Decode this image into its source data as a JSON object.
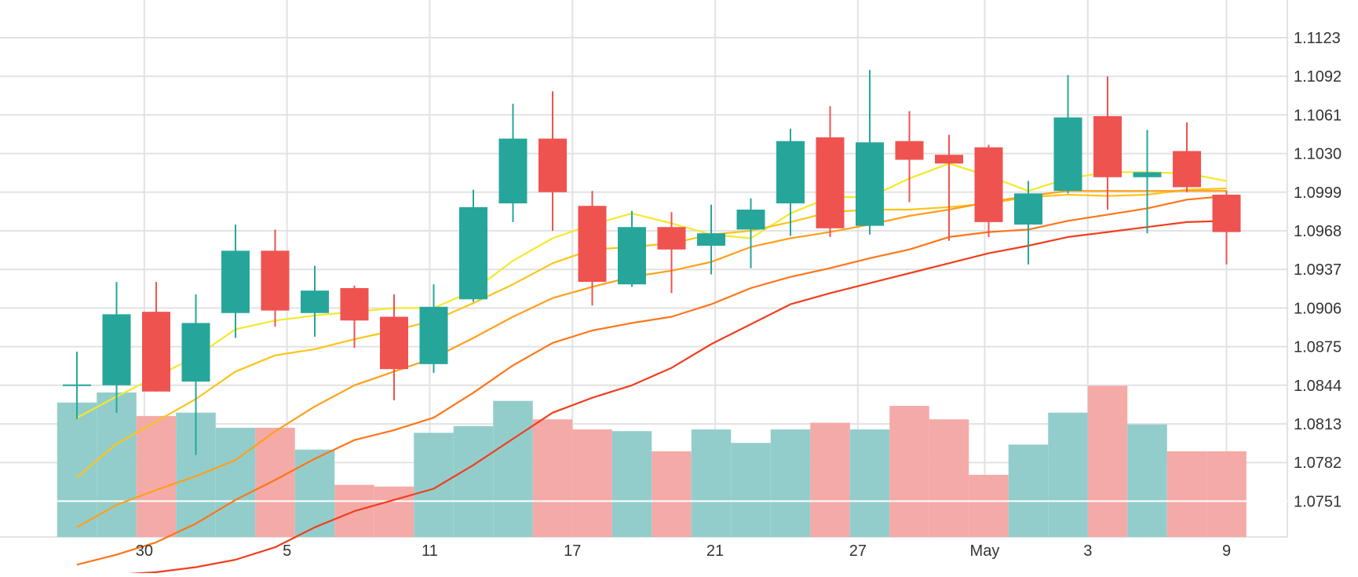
{
  "chart_data": {
    "type": "candlestick",
    "y_ticks": [
      "1.1123",
      "1.1092",
      "1.1061",
      "1.1030",
      "1.0999",
      "1.0968",
      "1.0937",
      "1.0906",
      "1.0875",
      "1.0844",
      "1.0813",
      "1.0782",
      "1.0751"
    ],
    "x_ticks": [
      "30",
      "5",
      "11",
      "17",
      "21",
      "27",
      "May",
      "3",
      "9"
    ],
    "ylim": [
      1.072,
      1.1138
    ],
    "grid": true,
    "candles": [
      {
        "o": 1.0844,
        "h": 1.0871,
        "l": 1.0817,
        "c": 1.0844
      },
      {
        "o": 1.0844,
        "h": 1.0927,
        "l": 1.0822,
        "c": 1.0901
      },
      {
        "o": 1.0903,
        "h": 1.0927,
        "l": 1.0839,
        "c": 1.0839
      },
      {
        "o": 1.0847,
        "h": 1.0917,
        "l": 1.0788,
        "c": 1.0894
      },
      {
        "o": 1.0902,
        "h": 1.0973,
        "l": 1.0882,
        "c": 1.0952
      },
      {
        "o": 1.0952,
        "h": 1.0969,
        "l": 1.0891,
        "c": 1.0904
      },
      {
        "o": 1.0902,
        "h": 1.094,
        "l": 1.0883,
        "c": 1.092
      },
      {
        "o": 1.0922,
        "h": 1.0924,
        "l": 1.0874,
        "c": 1.0896
      },
      {
        "o": 1.0899,
        "h": 1.0917,
        "l": 1.0832,
        "c": 1.0857
      },
      {
        "o": 1.0861,
        "h": 1.0925,
        "l": 1.0854,
        "c": 1.0907
      },
      {
        "o": 1.0913,
        "h": 1.1001,
        "l": 1.0911,
        "c": 1.0987
      },
      {
        "o": 1.099,
        "h": 1.107,
        "l": 1.0975,
        "c": 1.1042
      },
      {
        "o": 1.1042,
        "h": 1.108,
        "l": 1.0968,
        "c": 1.0999
      },
      {
        "o": 1.0988,
        "h": 1.1,
        "l": 1.0908,
        "c": 1.0927
      },
      {
        "o": 1.0925,
        "h": 1.0984,
        "l": 1.0923,
        "c": 1.0971
      },
      {
        "o": 1.0971,
        "h": 1.0983,
        "l": 1.0918,
        "c": 1.0953
      },
      {
        "o": 1.0956,
        "h": 1.0989,
        "l": 1.0933,
        "c": 1.0966
      },
      {
        "o": 1.0969,
        "h": 1.0994,
        "l": 1.0938,
        "c": 1.0985
      },
      {
        "o": 1.099,
        "h": 1.105,
        "l": 1.0964,
        "c": 1.104
      },
      {
        "o": 1.1043,
        "h": 1.1068,
        "l": 1.0963,
        "c": 1.097
      },
      {
        "o": 1.0972,
        "h": 1.1097,
        "l": 1.0965,
        "c": 1.1039
      },
      {
        "o": 1.104,
        "h": 1.1064,
        "l": 1.0991,
        "c": 1.1025
      },
      {
        "o": 1.1029,
        "h": 1.1045,
        "l": 1.096,
        "c": 1.1022
      },
      {
        "o": 1.1035,
        "h": 1.1037,
        "l": 1.0963,
        "c": 1.0975
      },
      {
        "o": 1.0973,
        "h": 1.1008,
        "l": 1.0941,
        "c": 1.0998
      },
      {
        "o": 1.1,
        "h": 1.1093,
        "l": 1.0998,
        "c": 1.1059
      },
      {
        "o": 1.106,
        "h": 1.1092,
        "l": 1.0985,
        "c": 1.1011
      },
      {
        "o": 1.1011,
        "h": 1.1049,
        "l": 1.0966,
        "c": 1.1015
      },
      {
        "o": 1.1032,
        "h": 1.1055,
        "l": 1.0999,
        "c": 1.1003
      },
      {
        "o": 1.0997,
        "h": 1.1,
        "l": 1.0941,
        "c": 1.0967
      }
    ],
    "volume_scale": [
      0,
      100
    ],
    "volumes": [
      80,
      86,
      72,
      74,
      65,
      65,
      52,
      31,
      30,
      62,
      66,
      81,
      70,
      64,
      63,
      51,
      64,
      56,
      64,
      68,
      64,
      78,
      70,
      37,
      55,
      74,
      90,
      67,
      51,
      51
    ],
    "moving_averages": [
      {
        "color": "#f5e82c",
        "values": [
          1.0818,
          1.0835,
          1.0851,
          1.0867,
          1.0889,
          1.0896,
          1.09,
          1.0903,
          1.0906,
          1.0906,
          1.092,
          1.0944,
          1.0962,
          1.0973,
          1.0982,
          1.0974,
          1.0965,
          1.0962,
          1.0982,
          1.0995,
          1.0995,
          1.101,
          1.1022,
          1.1012,
          1.1,
          1.101,
          1.1015,
          1.1015,
          1.1014,
          1.1008
        ]
      },
      {
        "color": "#fcc419",
        "values": [
          1.077,
          1.0797,
          1.0815,
          1.0833,
          1.0855,
          1.0868,
          1.0873,
          1.0881,
          1.0888,
          1.0896,
          1.091,
          1.0925,
          1.0942,
          1.0953,
          1.0955,
          1.0958,
          1.0965,
          1.0968,
          1.0975,
          1.0983,
          1.0985,
          1.0985,
          1.0987,
          1.099,
          1.0995,
          1.0997,
          1.0996,
          1.0997,
          1.1001,
          1.1002
        ]
      },
      {
        "color": "#ff9f1c",
        "values": [
          1.073,
          1.0748,
          1.076,
          1.0771,
          1.0784,
          1.0807,
          1.0827,
          1.0844,
          1.0855,
          1.0866,
          1.0882,
          1.0899,
          1.0914,
          1.0923,
          1.0931,
          1.0936,
          1.0943,
          1.0955,
          1.0962,
          1.0967,
          1.0973,
          1.098,
          1.0985,
          1.0991,
          1.0996,
          1.1,
          1.1,
          1.1,
          1.1,
          1.1
        ]
      },
      {
        "color": "#ff7518",
        "values": [
          1.07,
          1.0708,
          1.0718,
          1.0733,
          1.0752,
          1.0768,
          1.0785,
          1.08,
          1.0808,
          1.0818,
          1.0838,
          1.086,
          1.0878,
          1.0888,
          1.0894,
          1.0899,
          1.0909,
          1.0922,
          1.0931,
          1.0938,
          1.0946,
          1.0953,
          1.0963,
          1.0967,
          1.0969,
          1.0976,
          1.0981,
          1.0986,
          1.0993,
          1.0996
        ]
      },
      {
        "color": "#f03e1e",
        "values": [
          1.069,
          1.0692,
          1.0694,
          1.0698,
          1.0704,
          1.0714,
          1.073,
          1.0743,
          1.0752,
          1.0761,
          1.078,
          1.0801,
          1.0822,
          1.0834,
          1.0844,
          1.0858,
          1.0877,
          1.0893,
          1.0909,
          1.0918,
          1.0926,
          1.0934,
          1.0942,
          1.095,
          1.0956,
          1.0963,
          1.0967,
          1.0971,
          1.0975,
          1.0976
        ]
      }
    ],
    "colors": {
      "up": "#26a69a",
      "down": "#ef5350",
      "volume_up": "#92cdcb",
      "volume_down": "#f4aaa7",
      "grid": "#e2e2e2",
      "volume_line": "#ffffff"
    }
  }
}
